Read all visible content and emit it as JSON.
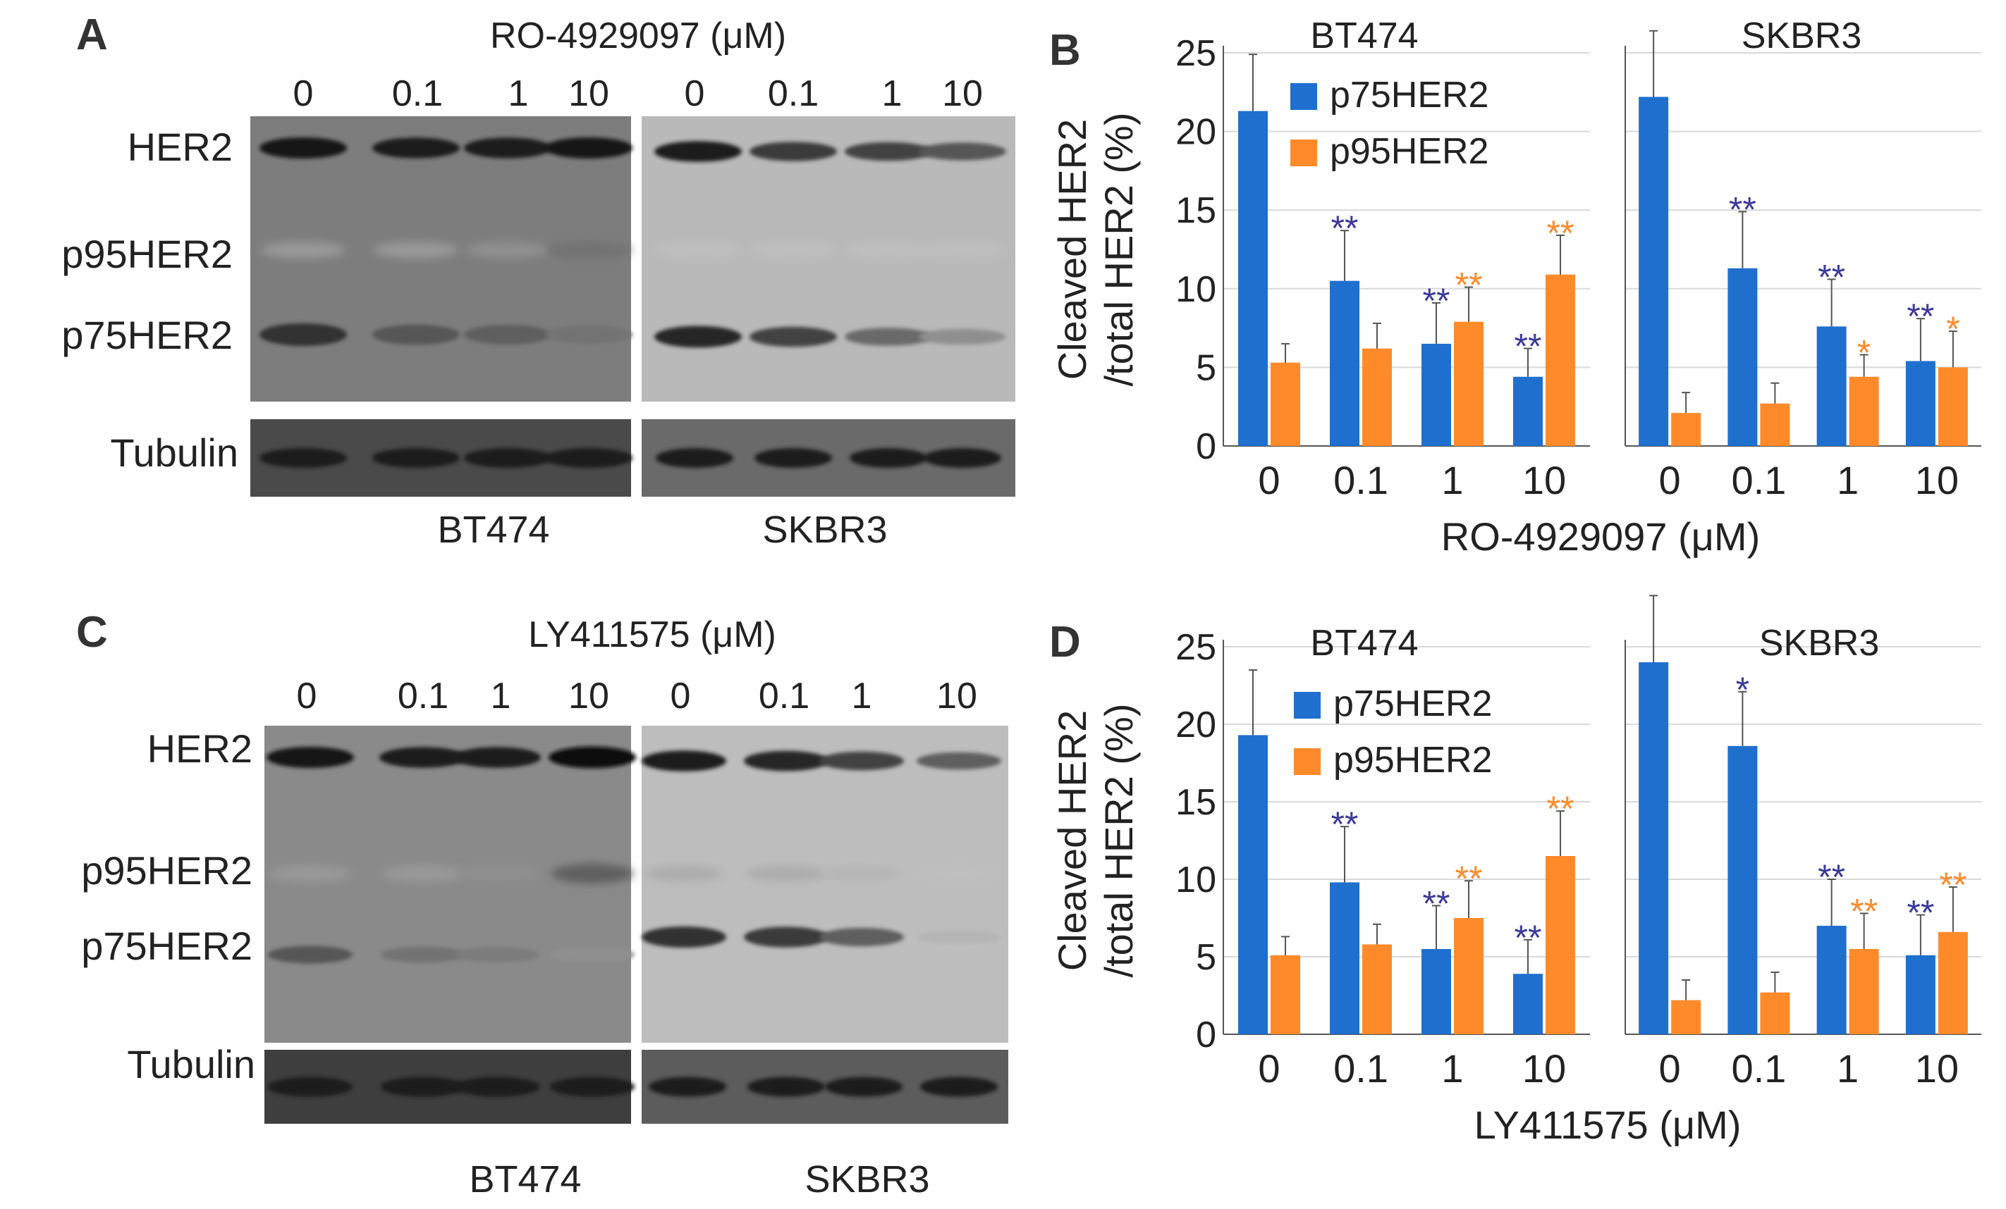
{
  "figure": {
    "panel_labels": [
      "A",
      "B",
      "C",
      "D"
    ]
  },
  "colors": {
    "p75": "#1f6fce",
    "p95": "#ff8a2a",
    "star_p75": "#3a3a9a",
    "star_p95": "#ff8a2a",
    "grid": "#d9d9d9"
  },
  "blots": [
    {
      "title": "RO-4929097 (μM)",
      "rows": [
        "HER2",
        "p95HER2",
        "p75HER2",
        "Tubulin"
      ],
      "lanes_left": [
        "0",
        "0.1",
        "1",
        "10"
      ],
      "lanes_right": [
        "0",
        "0.1",
        "1",
        "10"
      ],
      "cell_left": "BT474",
      "cell_right": "SKBR3",
      "her2_intensity_left": [
        0.95,
        0.9,
        0.9,
        0.95
      ],
      "her2_intensity_right": [
        0.9,
        0.75,
        0.7,
        0.6
      ],
      "p75_intensity_left": [
        0.8,
        0.6,
        0.55,
        0.45
      ],
      "p75_intensity_right": [
        0.85,
        0.7,
        0.5,
        0.3
      ],
      "p95_intensity_left": [
        0.25,
        0.25,
        0.3,
        0.45
      ],
      "p95_intensity_right": [
        0.05,
        0.05,
        0.05,
        0.05
      ]
    },
    {
      "title": "LY411575 (μM)",
      "rows": [
        "HER2",
        "p95HER2",
        "p75HER2",
        "Tubulin"
      ],
      "lanes_left": [
        "0",
        "0.1",
        "1",
        "10"
      ],
      "lanes_right": [
        "0",
        "0.1",
        "1",
        "10"
      ],
      "cell_left": "BT474",
      "cell_right": "SKBR3",
      "her2_intensity_left": [
        0.95,
        0.9,
        0.9,
        1.0
      ],
      "her2_intensity_right": [
        0.9,
        0.85,
        0.7,
        0.55
      ],
      "p75_intensity_left": [
        0.6,
        0.45,
        0.4,
        0.3
      ],
      "p75_intensity_right": [
        0.8,
        0.75,
        0.55,
        0.1
      ],
      "p95_intensity_left": [
        0.25,
        0.25,
        0.3,
        0.55
      ],
      "p95_intensity_right": [
        0.15,
        0.15,
        0.1,
        0.05
      ]
    }
  ],
  "chart_data": [
    {
      "type": "bar",
      "panel": "B",
      "ylabel_line1": "Cleaved HER2",
      "ylabel_line2": "/total HER2 (%)",
      "xlabel": "RO-4929097 (μM)",
      "ylim": [
        0,
        25
      ],
      "yticks": [
        "0",
        "5",
        "10",
        "15",
        "20",
        "25"
      ],
      "grid": true,
      "legend": {
        "placement": "top-left",
        "entries": [
          "p75HER2",
          "p95HER2"
        ]
      },
      "groups": [
        {
          "title": "BT474",
          "categories": [
            "0",
            "0.1",
            "1",
            "10"
          ],
          "series": [
            {
              "name": "p75HER2",
              "values": [
                21.3,
                10.5,
                6.5,
                4.4
              ],
              "errors": [
                3.6,
                3.2,
                2.6,
                1.8
              ],
              "stars": [
                "",
                "**",
                "**",
                "**"
              ]
            },
            {
              "name": "p95HER2",
              "values": [
                5.3,
                6.2,
                7.9,
                10.9
              ],
              "errors": [
                1.2,
                1.6,
                2.2,
                2.5
              ],
              "stars": [
                "",
                "",
                "**",
                "**"
              ]
            }
          ]
        },
        {
          "title": "SKBR3",
          "categories": [
            "0",
            "0.1",
            "1",
            "10"
          ],
          "series": [
            {
              "name": "p75HER2",
              "values": [
                22.2,
                11.3,
                7.6,
                5.4
              ],
              "errors": [
                4.2,
                3.6,
                3.0,
                2.7
              ],
              "stars": [
                "",
                "**",
                "**",
                "**"
              ]
            },
            {
              "name": "p95HER2",
              "values": [
                2.1,
                2.7,
                4.4,
                5.0
              ],
              "errors": [
                1.3,
                1.3,
                1.4,
                2.3
              ],
              "stars": [
                "",
                "",
                "*",
                "*"
              ]
            }
          ]
        }
      ]
    },
    {
      "type": "bar",
      "panel": "D",
      "ylabel_line1": "Cleaved HER2",
      "ylabel_line2": "/total HER2 (%)",
      "xlabel": "LY411575 (μM)",
      "ylim": [
        0,
        25
      ],
      "yticks": [
        "0",
        "5",
        "10",
        "15",
        "20",
        "25"
      ],
      "grid": true,
      "legend": {
        "placement": "top-left",
        "entries": [
          "p75HER2",
          "p95HER2"
        ]
      },
      "groups": [
        {
          "title": "BT474",
          "categories": [
            "0",
            "0.1",
            "1",
            "10"
          ],
          "series": [
            {
              "name": "p75HER2",
              "values": [
                19.3,
                9.8,
                5.5,
                3.9
              ],
              "errors": [
                4.2,
                3.6,
                2.8,
                2.2
              ],
              "stars": [
                "",
                "**",
                "**",
                "**"
              ]
            },
            {
              "name": "p95HER2",
              "values": [
                5.1,
                5.8,
                7.5,
                11.5
              ],
              "errors": [
                1.2,
                1.3,
                2.4,
                2.9
              ],
              "stars": [
                "",
                "",
                "**",
                "**"
              ]
            }
          ]
        },
        {
          "title": "SKBR3",
          "categories": [
            "0",
            "0.1",
            "1",
            "10"
          ],
          "series": [
            {
              "name": "p75HER2",
              "values": [
                24.0,
                18.6,
                7.0,
                5.1
              ],
              "errors": [
                4.3,
                3.5,
                3.0,
                2.6
              ],
              "stars": [
                "",
                "*",
                "**",
                "**"
              ]
            },
            {
              "name": "p95HER2",
              "values": [
                2.2,
                2.7,
                5.5,
                6.6
              ],
              "errors": [
                1.3,
                1.3,
                2.3,
                2.9
              ],
              "stars": [
                "",
                "",
                "**",
                "**"
              ]
            }
          ]
        }
      ]
    }
  ]
}
